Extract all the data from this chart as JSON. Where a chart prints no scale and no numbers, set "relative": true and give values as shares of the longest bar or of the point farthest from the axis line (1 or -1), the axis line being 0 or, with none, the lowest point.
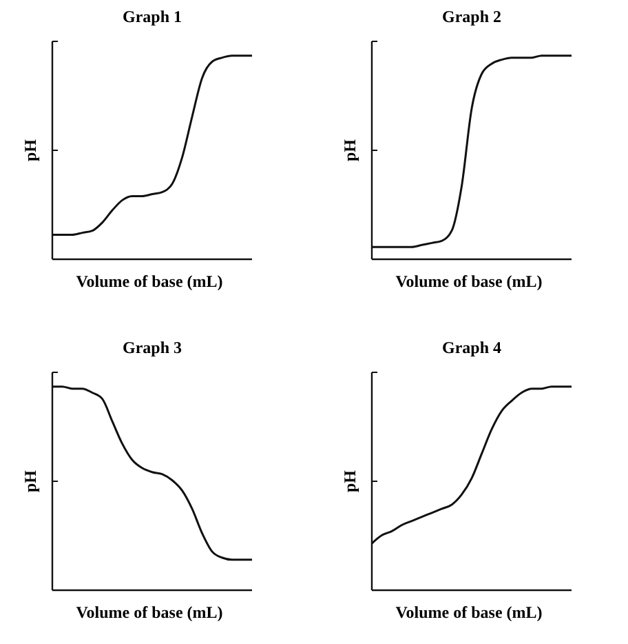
{
  "chart_data": [
    {
      "type": "line",
      "title": "Graph 1",
      "xlabel": "Volume of base (mL)",
      "ylabel": "pH",
      "relative": true,
      "categories": [
        null,
        null,
        null,
        null,
        null,
        null,
        null,
        null,
        null,
        null,
        null,
        null,
        null,
        null,
        null,
        null,
        null,
        null,
        null,
        null,
        null
      ],
      "series": [
        {
          "color": "#111111",
          "values": [
            0.12,
            0.12,
            0.12,
            0.13,
            0.14,
            0.18,
            0.24,
            0.29,
            0.31,
            0.31,
            0.32,
            0.33,
            0.37,
            0.5,
            0.7,
            0.89,
            0.97,
            0.99,
            1,
            1,
            1
          ]
        }
      ]
    },
    {
      "type": "line",
      "title": "Graph 2",
      "xlabel": "Volume of base (mL)",
      "ylabel": "pH",
      "relative": true,
      "categories": [
        null,
        null,
        null,
        null,
        null,
        null,
        null,
        null,
        null,
        null,
        null,
        null,
        null,
        null,
        null,
        null,
        null,
        null,
        null,
        null,
        null
      ],
      "series": [
        {
          "color": "#111111",
          "values": [
            0.06,
            0.06,
            0.06,
            0.06,
            0.06,
            0.07,
            0.08,
            0.09,
            0.14,
            0.36,
            0.74,
            0.91,
            0.96,
            0.98,
            0.99,
            0.99,
            0.99,
            1,
            1,
            1,
            1
          ]
        }
      ]
    },
    {
      "type": "line",
      "title": "Graph 3",
      "xlabel": "Volume of base (mL)",
      "ylabel": "pH",
      "relative": true,
      "categories": [
        null,
        null,
        null,
        null,
        null,
        null,
        null,
        null,
        null,
        null,
        null,
        null,
        null,
        null,
        null,
        null,
        null,
        null,
        null,
        null,
        null
      ],
      "series": [
        {
          "color": "#111111",
          "values": [
            1,
            1,
            0.99,
            0.99,
            0.97,
            0.94,
            0.83,
            0.72,
            0.64,
            0.6,
            0.58,
            0.57,
            0.54,
            0.49,
            0.4,
            0.28,
            0.19,
            0.16,
            0.15,
            0.15,
            0.15
          ]
        }
      ]
    },
    {
      "type": "line",
      "title": "Graph 4",
      "xlabel": "Volume of base (mL)",
      "ylabel": "pH",
      "relative": true,
      "categories": [
        null,
        null,
        null,
        null,
        null,
        null,
        null,
        null,
        null,
        null,
        null,
        null,
        null,
        null,
        null,
        null,
        null,
        null,
        null,
        null,
        null
      ],
      "series": [
        {
          "color": "#111111",
          "values": [
            0.23,
            0.27,
            0.29,
            0.32,
            0.34,
            0.36,
            0.38,
            0.4,
            0.42,
            0.47,
            0.55,
            0.67,
            0.79,
            0.88,
            0.93,
            0.97,
            0.99,
            0.99,
            1,
            1,
            1
          ]
        }
      ]
    }
  ]
}
